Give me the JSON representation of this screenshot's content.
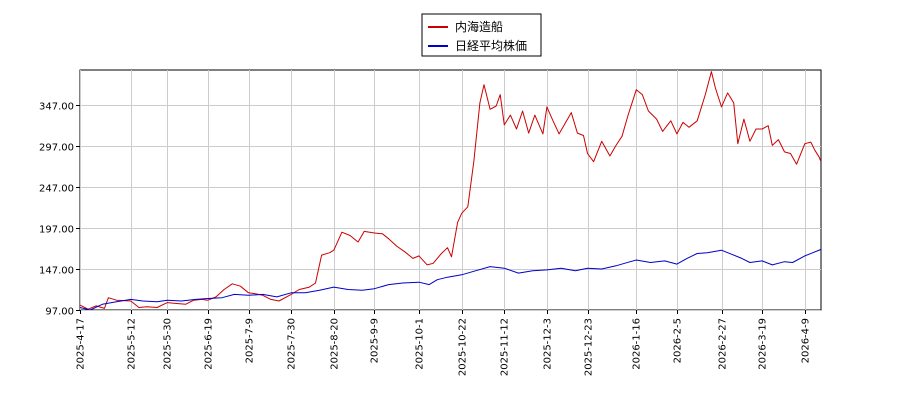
{
  "chart_data": {
    "type": "line",
    "title": "",
    "xlabel": "",
    "ylabel": "",
    "legend_position": "top-center",
    "grid": true,
    "x_start": "2025-04-17",
    "x_end": "2026-04-17",
    "ylim": [
      97,
      390
    ],
    "yticks": [
      97,
      147,
      197,
      247,
      297,
      347
    ],
    "ytick_labels": [
      "97.00",
      "147.00",
      "197.00",
      "247.00",
      "297.00",
      "347.00"
    ],
    "xticks": [
      "2025-4-17",
      "2025-5-12",
      "2025-5-30",
      "2025-6-19",
      "2025-7-9",
      "2025-7-30",
      "2025-8-20",
      "2025-9-9",
      "2025-10-1",
      "2025-10-22",
      "2025-11-12",
      "2025-12-3",
      "2025-12-23",
      "2026-1-16",
      "2026-2-5",
      "2026-2-27",
      "2026-3-19",
      "2026-4-9"
    ],
    "xtick_dates": [
      "2025-04-17",
      "2025-05-12",
      "2025-05-30",
      "2025-06-19",
      "2025-07-09",
      "2025-07-30",
      "2025-08-20",
      "2025-09-09",
      "2025-10-01",
      "2025-10-22",
      "2025-11-12",
      "2025-12-03",
      "2025-12-23",
      "2026-01-16",
      "2026-02-05",
      "2026-02-27",
      "2026-03-19",
      "2026-04-09"
    ],
    "series": [
      {
        "name": "内海造船",
        "color": "#cc0000",
        "points": [
          [
            "2025-04-17",
            103
          ],
          [
            "2025-04-21",
            98
          ],
          [
            "2025-04-25",
            102
          ],
          [
            "2025-04-29",
            99
          ],
          [
            "2025-05-01",
            112
          ],
          [
            "2025-05-05",
            109
          ],
          [
            "2025-05-12",
            108
          ],
          [
            "2025-05-16",
            100
          ],
          [
            "2025-05-20",
            101
          ],
          [
            "2025-05-25",
            100
          ],
          [
            "2025-05-30",
            106
          ],
          [
            "2025-06-03",
            105
          ],
          [
            "2025-06-08",
            104
          ],
          [
            "2025-06-12",
            109
          ],
          [
            "2025-06-16",
            110
          ],
          [
            "2025-06-19",
            109
          ],
          [
            "2025-06-23",
            113
          ],
          [
            "2025-06-27",
            122
          ],
          [
            "2025-07-01",
            129
          ],
          [
            "2025-07-05",
            126
          ],
          [
            "2025-07-09",
            118
          ],
          [
            "2025-07-12",
            117
          ],
          [
            "2025-07-16",
            115
          ],
          [
            "2025-07-20",
            110
          ],
          [
            "2025-07-24",
            108
          ],
          [
            "2025-07-30",
            116
          ],
          [
            "2025-08-03",
            122
          ],
          [
            "2025-08-08",
            125
          ],
          [
            "2025-08-11",
            130
          ],
          [
            "2025-08-14",
            164
          ],
          [
            "2025-08-18",
            167
          ],
          [
            "2025-08-20",
            170
          ],
          [
            "2025-08-24",
            192
          ],
          [
            "2025-08-28",
            188
          ],
          [
            "2025-09-01",
            180
          ],
          [
            "2025-09-04",
            193
          ],
          [
            "2025-09-09",
            191
          ],
          [
            "2025-09-13",
            190
          ],
          [
            "2025-09-16",
            184
          ],
          [
            "2025-09-20",
            175
          ],
          [
            "2025-09-24",
            168
          ],
          [
            "2025-09-28",
            160
          ],
          [
            "2025-10-01",
            163
          ],
          [
            "2025-10-05",
            152
          ],
          [
            "2025-10-08",
            154
          ],
          [
            "2025-10-12",
            166
          ],
          [
            "2025-10-15",
            173
          ],
          [
            "2025-10-17",
            162
          ],
          [
            "2025-10-20",
            204
          ],
          [
            "2025-10-22",
            215
          ],
          [
            "2025-10-25",
            223
          ],
          [
            "2025-10-28",
            278
          ],
          [
            "2025-10-31",
            350
          ],
          [
            "2025-11-02",
            372
          ],
          [
            "2025-11-05",
            342
          ],
          [
            "2025-11-08",
            346
          ],
          [
            "2025-11-10",
            360
          ],
          [
            "2025-11-12",
            323
          ],
          [
            "2025-11-15",
            335
          ],
          [
            "2025-11-18",
            318
          ],
          [
            "2025-11-21",
            340
          ],
          [
            "2025-11-24",
            313
          ],
          [
            "2025-11-27",
            335
          ],
          [
            "2025-12-01",
            312
          ],
          [
            "2025-12-03",
            345
          ],
          [
            "2025-12-06",
            328
          ],
          [
            "2025-12-09",
            312
          ],
          [
            "2025-12-12",
            325
          ],
          [
            "2025-12-15",
            338
          ],
          [
            "2025-12-18",
            313
          ],
          [
            "2025-12-21",
            310
          ],
          [
            "2025-12-23",
            288
          ],
          [
            "2025-12-26",
            278
          ],
          [
            "2025-12-30",
            303
          ],
          [
            "2026-01-03",
            285
          ],
          [
            "2026-01-06",
            298
          ],
          [
            "2026-01-09",
            309
          ],
          [
            "2026-01-12",
            335
          ],
          [
            "2026-01-16",
            366
          ],
          [
            "2026-01-19",
            360
          ],
          [
            "2026-01-22",
            340
          ],
          [
            "2026-01-26",
            330
          ],
          [
            "2026-01-29",
            315
          ],
          [
            "2026-02-02",
            328
          ],
          [
            "2026-02-05",
            312
          ],
          [
            "2026-02-08",
            326
          ],
          [
            "2026-02-11",
            320
          ],
          [
            "2026-02-15",
            328
          ],
          [
            "2026-02-19",
            360
          ],
          [
            "2026-02-22",
            388
          ],
          [
            "2026-02-24",
            368
          ],
          [
            "2026-02-27",
            345
          ],
          [
            "2026-03-02",
            362
          ],
          [
            "2026-03-05",
            350
          ],
          [
            "2026-03-07",
            300
          ],
          [
            "2026-03-10",
            330
          ],
          [
            "2026-03-13",
            303
          ],
          [
            "2026-03-16",
            318
          ],
          [
            "2026-03-19",
            318
          ],
          [
            "2026-03-22",
            322
          ],
          [
            "2026-03-24",
            298
          ],
          [
            "2026-03-27",
            305
          ],
          [
            "2026-03-30",
            290
          ],
          [
            "2026-04-02",
            288
          ],
          [
            "2026-04-05",
            275
          ],
          [
            "2026-04-09",
            300
          ],
          [
            "2026-04-12",
            302
          ],
          [
            "2026-04-14",
            292
          ],
          [
            "2026-04-16",
            284
          ],
          [
            "2026-04-17",
            278
          ]
        ]
      },
      {
        "name": "日経平均株価",
        "color": "#0000cc",
        "points": [
          [
            "2025-04-17",
            100
          ],
          [
            "2025-04-22",
            97
          ],
          [
            "2025-04-28",
            104
          ],
          [
            "2025-05-05",
            107
          ],
          [
            "2025-05-12",
            110
          ],
          [
            "2025-05-18",
            108
          ],
          [
            "2025-05-25",
            107
          ],
          [
            "2025-05-30",
            109
          ],
          [
            "2025-06-06",
            108
          ],
          [
            "2025-06-13",
            110
          ],
          [
            "2025-06-19",
            111
          ],
          [
            "2025-06-26",
            112
          ],
          [
            "2025-07-02",
            116
          ],
          [
            "2025-07-09",
            115
          ],
          [
            "2025-07-16",
            116
          ],
          [
            "2025-07-23",
            113
          ],
          [
            "2025-07-30",
            118
          ],
          [
            "2025-08-06",
            118
          ],
          [
            "2025-08-13",
            121
          ],
          [
            "2025-08-20",
            125
          ],
          [
            "2025-08-27",
            122
          ],
          [
            "2025-09-03",
            121
          ],
          [
            "2025-09-09",
            123
          ],
          [
            "2025-09-16",
            128
          ],
          [
            "2025-09-23",
            130
          ],
          [
            "2025-10-01",
            131
          ],
          [
            "2025-10-06",
            128
          ],
          [
            "2025-10-10",
            134
          ],
          [
            "2025-10-15",
            137
          ],
          [
            "2025-10-22",
            140
          ],
          [
            "2025-10-29",
            145
          ],
          [
            "2025-11-05",
            150
          ],
          [
            "2025-11-12",
            148
          ],
          [
            "2025-11-19",
            142
          ],
          [
            "2025-11-26",
            145
          ],
          [
            "2025-12-03",
            146
          ],
          [
            "2025-12-10",
            148
          ],
          [
            "2025-12-17",
            145
          ],
          [
            "2025-12-23",
            148
          ],
          [
            "2025-12-30",
            147
          ],
          [
            "2026-01-06",
            151
          ],
          [
            "2026-01-13",
            156
          ],
          [
            "2026-01-16",
            158
          ],
          [
            "2026-01-23",
            155
          ],
          [
            "2026-01-30",
            157
          ],
          [
            "2026-02-05",
            153
          ],
          [
            "2026-02-10",
            160
          ],
          [
            "2026-02-15",
            166
          ],
          [
            "2026-02-20",
            167
          ],
          [
            "2026-02-27",
            170
          ],
          [
            "2026-03-04",
            165
          ],
          [
            "2026-03-09",
            160
          ],
          [
            "2026-03-13",
            155
          ],
          [
            "2026-03-19",
            157
          ],
          [
            "2026-03-24",
            152
          ],
          [
            "2026-03-30",
            156
          ],
          [
            "2026-04-03",
            155
          ],
          [
            "2026-04-09",
            163
          ],
          [
            "2026-04-13",
            167
          ],
          [
            "2026-04-17",
            171
          ]
        ]
      }
    ]
  }
}
